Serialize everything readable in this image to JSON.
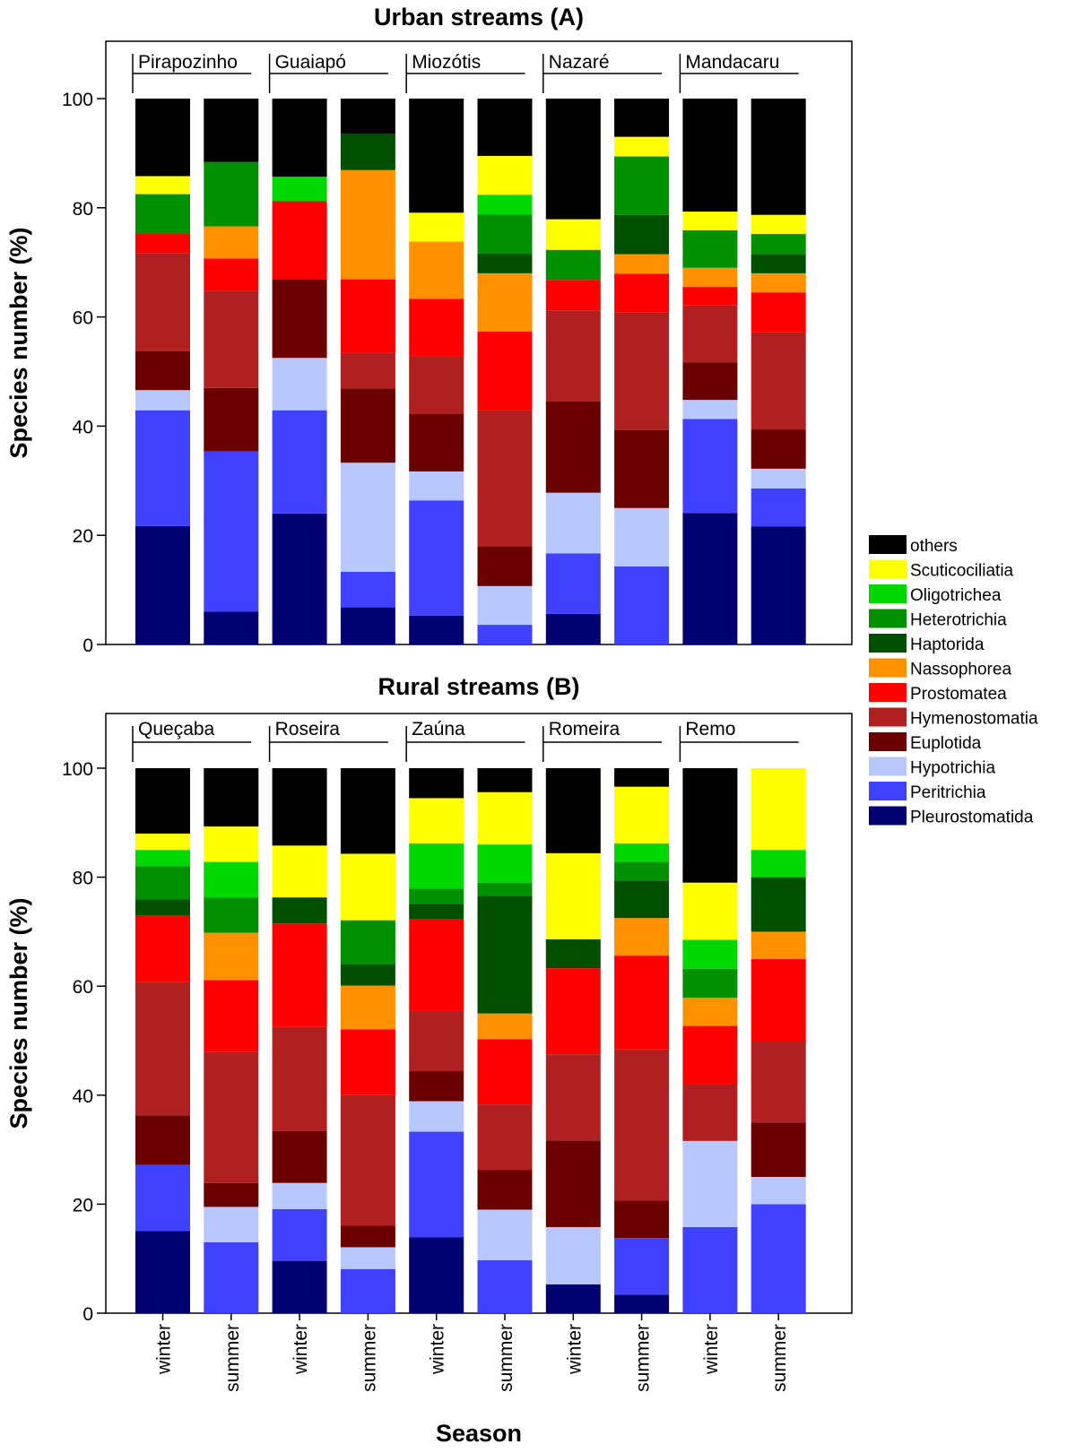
{
  "chart_data": {
    "type": "bar",
    "stacked": true,
    "ylabel": "Species number (%)",
    "xlabel": "Season",
    "ylim": [
      0,
      110
    ],
    "yticks": [
      0,
      20,
      40,
      60,
      80,
      100
    ],
    "seasons": [
      "winter",
      "summer"
    ],
    "categories": [
      "winter",
      "summer",
      "winter",
      "summer",
      "winter",
      "summer",
      "winter",
      "summer",
      "winter",
      "summer"
    ],
    "groups": [
      {
        "name": "others",
        "color": "#000000"
      },
      {
        "name": "Scuticociliatia",
        "color": "#ffff00"
      },
      {
        "name": "Oligotrichea",
        "color": "#00d800"
      },
      {
        "name": "Heterotrichia",
        "color": "#009000"
      },
      {
        "name": "Haptorida",
        "color": "#005000"
      },
      {
        "name": "Nassophorea",
        "color": "#ff9000"
      },
      {
        "name": "Prostomatea",
        "color": "#ff0000"
      },
      {
        "name": "Hymenostomatia",
        "color": "#b02020"
      },
      {
        "name": "Euplotida",
        "color": "#6a0000"
      },
      {
        "name": "Hypotrichia",
        "color": "#b8c8ff"
      },
      {
        "name": "Peritrichia",
        "color": "#4040ff"
      },
      {
        "name": "Pleurostomatida",
        "color": "#000070"
      }
    ],
    "stack_order": [
      "Pleurostomatida",
      "Peritrichia",
      "Hypotrichia",
      "Euplotida",
      "Hymenostomatia",
      "Prostomatea",
      "Nassophorea",
      "Haptorida",
      "Heterotrichia",
      "Oligotrichea",
      "Scuticociliatia",
      "others"
    ],
    "panels": [
      {
        "title": "Urban streams (A)",
        "sites": [
          "Pirapozinho",
          "Guaiapó",
          "Miozótis",
          "Nazaré",
          "Mandacaru"
        ],
        "bars": [
          {
            "site": "Pirapozinho",
            "season": "winter",
            "values": {
              "Pleurostomatida": 21.7,
              "Peritrichia": 21.2,
              "Hypotrichia": 3.7,
              "Euplotida": 7.1,
              "Hymenostomatia": 18.0,
              "Prostomatea": 3.6,
              "Nassophorea": 0,
              "Haptorida": 0,
              "Heterotrichia": 7.2,
              "Oligotrichea": 0,
              "Scuticociliatia": 3.3,
              "others": 14.2
            }
          },
          {
            "site": "Pirapozinho",
            "season": "summer",
            "values": {
              "Pleurostomatida": 6.0,
              "Peritrichia": 29.4,
              "Hypotrichia": 0,
              "Euplotida": 11.6,
              "Hymenostomatia": 17.8,
              "Prostomatea": 5.9,
              "Nassophorea": 5.9,
              "Haptorida": 0,
              "Heterotrichia": 11.8,
              "Oligotrichea": 0,
              "Scuticociliatia": 0,
              "others": 11.6
            }
          },
          {
            "site": "Guaiapó",
            "season": "winter",
            "values": {
              "Pleurostomatida": 24.0,
              "Peritrichia": 18.9,
              "Hypotrichia": 9.6,
              "Euplotida": 14.4,
              "Hymenostomatia": 0,
              "Prostomatea": 14.3,
              "Nassophorea": 0,
              "Haptorida": 0,
              "Heterotrichia": 0,
              "Oligotrichea": 4.5,
              "Scuticociliatia": 0,
              "others": 14.3
            }
          },
          {
            "site": "Guaiapó",
            "season": "summer",
            "values": {
              "Pleurostomatida": 6.8,
              "Peritrichia": 6.5,
              "Hypotrichia": 20.0,
              "Euplotida": 13.6,
              "Hymenostomatia": 6.6,
              "Prostomatea": 13.4,
              "Nassophorea": 20.0,
              "Haptorida": 6.7,
              "Heterotrichia": 0,
              "Oligotrichea": 0,
              "Scuticociliatia": 0,
              "others": 6.4
            }
          },
          {
            "site": "Miozótis",
            "season": "winter",
            "values": {
              "Pleurostomatida": 5.3,
              "Peritrichia": 21.1,
              "Hypotrichia": 5.3,
              "Euplotida": 10.5,
              "Hymenostomatia": 10.6,
              "Prostomatea": 10.5,
              "Nassophorea": 10.5,
              "Haptorida": 0,
              "Heterotrichia": 0,
              "Oligotrichea": 0,
              "Scuticociliatia": 5.3,
              "others": 20.9
            }
          },
          {
            "site": "Miozótis",
            "season": "summer",
            "values": {
              "Pleurostomatida": 0,
              "Peritrichia": 3.6,
              "Hypotrichia": 7.1,
              "Euplotida": 7.3,
              "Hymenostomatia": 25.0,
              "Prostomatea": 14.3,
              "Nassophorea": 10.7,
              "Haptorida": 3.6,
              "Heterotrichia": 7.2,
              "Oligotrichea": 3.6,
              "Scuticociliatia": 7.1,
              "others": 10.5
            }
          },
          {
            "site": "Nazaré",
            "season": "winter",
            "values": {
              "Pleurostomatida": 5.6,
              "Peritrichia": 11.1,
              "Hypotrichia": 11.1,
              "Euplotida": 16.7,
              "Hymenostomatia": 16.7,
              "Prostomatea": 5.6,
              "Nassophorea": 0,
              "Haptorida": 0,
              "Heterotrichia": 5.5,
              "Oligotrichea": 0,
              "Scuticociliatia": 5.6,
              "others": 22.1
            }
          },
          {
            "site": "Nazaré",
            "season": "summer",
            "values": {
              "Pleurostomatida": 0,
              "Peritrichia": 14.3,
              "Hypotrichia": 10.7,
              "Euplotida": 14.3,
              "Hymenostomatia": 21.5,
              "Prostomatea": 7.1,
              "Nassophorea": 3.6,
              "Haptorida": 7.2,
              "Heterotrichia": 10.7,
              "Oligotrichea": 0,
              "Scuticociliatia": 3.6,
              "others": 7.0
            }
          },
          {
            "site": "Mandacaru",
            "season": "winter",
            "values": {
              "Pleurostomatida": 24.1,
              "Peritrichia": 17.2,
              "Hypotrichia": 3.5,
              "Euplotida": 6.9,
              "Hymenostomatia": 10.4,
              "Prostomatea": 3.4,
              "Nassophorea": 3.5,
              "Haptorida": 0,
              "Heterotrichia": 6.9,
              "Oligotrichea": 0,
              "Scuticociliatia": 3.4,
              "others": 20.7
            }
          },
          {
            "site": "Mandacaru",
            "season": "summer",
            "values": {
              "Pleurostomatida": 21.6,
              "Peritrichia": 7.0,
              "Hypotrichia": 3.6,
              "Euplotida": 7.2,
              "Hymenostomatia": 17.8,
              "Prostomatea": 7.3,
              "Nassophorea": 3.5,
              "Haptorida": 3.5,
              "Heterotrichia": 3.7,
              "Oligotrichea": 0,
              "Scuticociliatia": 3.5,
              "others": 21.3
            }
          }
        ]
      },
      {
        "title": "Rural streams (B)",
        "sites": [
          "Queçaba",
          "Roseira",
          "Zaúna",
          "Romeira",
          "Remo"
        ],
        "bars": [
          {
            "site": "Queçaba",
            "season": "winter",
            "values": {
              "Pleurostomatida": 15.1,
              "Peritrichia": 12.1,
              "Hypotrichia": 0,
              "Euplotida": 9.1,
              "Hymenostomatia": 24.5,
              "Prostomatea": 12.1,
              "Nassophorea": 0,
              "Haptorida": 3.0,
              "Heterotrichia": 6.1,
              "Oligotrichea": 3.0,
              "Scuticociliatia": 3.0,
              "others": 12.0
            }
          },
          {
            "site": "Queçaba",
            "season": "summer",
            "values": {
              "Pleurostomatida": 0,
              "Peritrichia": 13.0,
              "Hypotrichia": 6.5,
              "Euplotida": 4.4,
              "Hymenostomatia": 24.1,
              "Prostomatea": 13.1,
              "Nassophorea": 8.7,
              "Haptorida": 0,
              "Heterotrichia": 6.5,
              "Oligotrichea": 6.5,
              "Scuticociliatia": 6.5,
              "others": 10.7
            }
          },
          {
            "site": "Roseira",
            "season": "winter",
            "values": {
              "Pleurostomatida": 9.6,
              "Peritrichia": 9.5,
              "Hypotrichia": 4.8,
              "Euplotida": 9.5,
              "Hymenostomatia": 19.1,
              "Prostomatea": 19.0,
              "Nassophorea": 0,
              "Haptorida": 4.8,
              "Heterotrichia": 0,
              "Oligotrichea": 0,
              "Scuticociliatia": 9.5,
              "others": 14.2
            }
          },
          {
            "site": "Roseira",
            "season": "summer",
            "values": {
              "Pleurostomatida": 0,
              "Peritrichia": 8.1,
              "Hypotrichia": 4.0,
              "Euplotida": 4.0,
              "Hymenostomatia": 24.0,
              "Prostomatea": 12.0,
              "Nassophorea": 8.0,
              "Haptorida": 4.0,
              "Heterotrichia": 8.0,
              "Oligotrichea": 0,
              "Scuticociliatia": 12.2,
              "others": 15.7
            }
          },
          {
            "site": "Zaúna",
            "season": "winter",
            "values": {
              "Pleurostomatida": 13.9,
              "Peritrichia": 19.4,
              "Hypotrichia": 5.6,
              "Euplotida": 5.5,
              "Hymenostomatia": 11.1,
              "Prostomatea": 16.8,
              "Nassophorea": 0,
              "Haptorida": 2.8,
              "Heterotrichia": 2.8,
              "Oligotrichea": 8.3,
              "Scuticociliatia": 8.3,
              "others": 5.5
            }
          },
          {
            "site": "Zaúna",
            "season": "summer",
            "values": {
              "Pleurostomatida": 0,
              "Peritrichia": 9.7,
              "Hypotrichia": 9.3,
              "Euplotida": 7.3,
              "Hymenostomatia": 12.0,
              "Prostomatea": 12.0,
              "Nassophorea": 4.7,
              "Haptorida": 21.6,
              "Heterotrichia": 2.4,
              "Oligotrichea": 7.0,
              "Scuticociliatia": 9.6,
              "others": 4.4
            }
          },
          {
            "site": "Romeira",
            "season": "winter",
            "values": {
              "Pleurostomatida": 5.3,
              "Peritrichia": 0,
              "Hypotrichia": 10.5,
              "Euplotida": 15.9,
              "Hymenostomatia": 15.8,
              "Prostomatea": 15.8,
              "Nassophorea": 0,
              "Haptorida": 5.3,
              "Heterotrichia": 0,
              "Oligotrichea": 0,
              "Scuticociliatia": 15.8,
              "others": 15.6
            }
          },
          {
            "site": "Romeira",
            "season": "summer",
            "values": {
              "Pleurostomatida": 3.4,
              "Peritrichia": 10.4,
              "Hypotrichia": 0,
              "Euplotida": 6.9,
              "Hymenostomatia": 27.7,
              "Prostomatea": 17.2,
              "Nassophorea": 6.9,
              "Haptorida": 6.9,
              "Heterotrichia": 3.4,
              "Oligotrichea": 3.4,
              "Scuticociliatia": 10.4,
              "others": 3.4
            }
          },
          {
            "site": "Remo",
            "season": "winter",
            "values": {
              "Pleurostomatida": 0,
              "Peritrichia": 15.8,
              "Hypotrichia": 15.8,
              "Euplotida": 0,
              "Hymenostomatia": 10.5,
              "Prostomatea": 10.6,
              "Nassophorea": 5.2,
              "Haptorida": 0,
              "Heterotrichia": 5.3,
              "Oligotrichea": 5.3,
              "Scuticociliatia": 10.5,
              "others": 21.0
            }
          },
          {
            "site": "Remo",
            "season": "summer",
            "values": {
              "Pleurostomatida": 0,
              "Peritrichia": 20.0,
              "Hypotrichia": 5.0,
              "Euplotida": 10.0,
              "Hymenostomatia": 15.0,
              "Prostomatea": 15.0,
              "Nassophorea": 5.0,
              "Haptorida": 10.0,
              "Heterotrichia": 0,
              "Oligotrichea": 5.0,
              "Scuticociliatia": 15.0,
              "others": 0
            }
          }
        ]
      }
    ]
  }
}
